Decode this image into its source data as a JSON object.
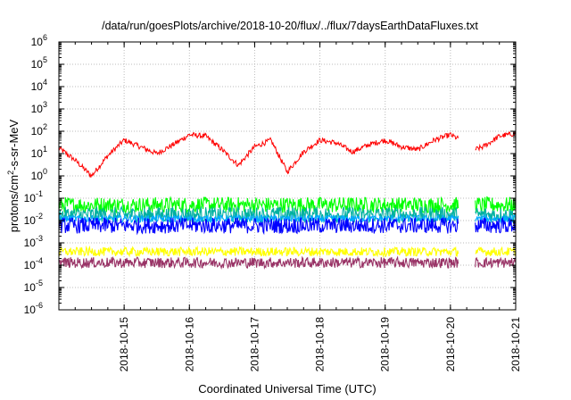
{
  "chart_data": {
    "type": "line",
    "title": "/data/run/goesPlots/archive/2018-10-20/flux/../flux/7daysEarthDataFluxes.txt",
    "xlabel": "Coordinated Universal Time (UTC)",
    "ylabel": "protons/cm2-s-sr-MeV",
    "ylabel_parts": {
      "base": "protons/cm",
      "sup": "2",
      "rest": "-s-sr-MeV"
    },
    "yscale": "log",
    "ylim": [
      1e-06,
      1000000.0
    ],
    "xlim": [
      "2018-10-14",
      "2018-10-21"
    ],
    "grid": true,
    "y_ticks": [
      {
        "base": "10",
        "exp": "-6"
      },
      {
        "base": "10",
        "exp": "-5"
      },
      {
        "base": "10",
        "exp": "-4"
      },
      {
        "base": "10",
        "exp": "-3"
      },
      {
        "base": "10",
        "exp": "-2"
      },
      {
        "base": "10",
        "exp": "-1"
      },
      {
        "base": "10",
        "exp": "0"
      },
      {
        "base": "10",
        "exp": "1"
      },
      {
        "base": "10",
        "exp": "2"
      },
      {
        "base": "10",
        "exp": "3"
      },
      {
        "base": "10",
        "exp": "4"
      },
      {
        "base": "10",
        "exp": "5"
      },
      {
        "base": "10",
        "exp": "6"
      }
    ],
    "x_ticks": [
      "2018-10-15",
      "2018-10-16",
      "2018-10-17",
      "2018-10-18",
      "2018-10-19",
      "2018-10-20",
      "2018-10-21"
    ],
    "gaps": [
      [
        "2018-10-20 03:00",
        "2018-10-20 09:00"
      ]
    ],
    "series": [
      {
        "color": "#ff0000",
        "noise": 0.06,
        "x": [
          "2018-10-14 00:00",
          "2018-10-14 06:00",
          "2018-10-14 12:00",
          "2018-10-14 18:00",
          "2018-10-15 00:00",
          "2018-10-15 06:00",
          "2018-10-15 12:00",
          "2018-10-15 18:00",
          "2018-10-16 00:00",
          "2018-10-16 06:00",
          "2018-10-16 12:00",
          "2018-10-16 18:00",
          "2018-10-17 00:00",
          "2018-10-17 06:00",
          "2018-10-17 12:00",
          "2018-10-17 18:00",
          "2018-10-18 00:00",
          "2018-10-18 06:00",
          "2018-10-18 12:00",
          "2018-10-18 18:00",
          "2018-10-19 00:00",
          "2018-10-19 06:00",
          "2018-10-19 12:00",
          "2018-10-19 18:00",
          "2018-10-20 00:00",
          "2018-10-20 03:00",
          "2018-10-20 09:00",
          "2018-10-20 12:00",
          "2018-10-20 18:00",
          "2018-10-21 00:00"
        ],
        "y": [
          18,
          5,
          1,
          8,
          40,
          20,
          10,
          25,
          70,
          60,
          15,
          3,
          20,
          40,
          1.5,
          12,
          40,
          30,
          12,
          25,
          40,
          20,
          15,
          40,
          70,
          45,
          15,
          20,
          60,
          80
        ]
      },
      {
        "color": "#00ff00",
        "noise": 0.18,
        "x": [
          "2018-10-14 00:00",
          "2018-10-21 00:00"
        ],
        "y": [
          0.05,
          0.05
        ]
      },
      {
        "color": "#00b0a0",
        "noise": 0.18,
        "x": [
          "2018-10-14 00:00",
          "2018-10-21 00:00"
        ],
        "y": [
          0.018,
          0.018
        ]
      },
      {
        "color": "#00aaff",
        "noise": 0.08,
        "x": [
          "2018-10-14 00:00",
          "2018-10-21 00:00"
        ],
        "y": [
          0.012,
          0.012
        ]
      },
      {
        "color": "#0000ff",
        "noise": 0.18,
        "x": [
          "2018-10-14 00:00",
          "2018-10-21 00:00"
        ],
        "y": [
          0.006,
          0.006
        ]
      },
      {
        "color": "#ffff00",
        "noise": 0.1,
        "x": [
          "2018-10-14 00:00",
          "2018-10-21 00:00"
        ],
        "y": [
          0.0004,
          0.0004
        ]
      },
      {
        "color": "#993366",
        "noise": 0.12,
        "x": [
          "2018-10-14 00:00",
          "2018-10-21 00:00"
        ],
        "y": [
          0.00013,
          0.00013
        ]
      }
    ]
  }
}
